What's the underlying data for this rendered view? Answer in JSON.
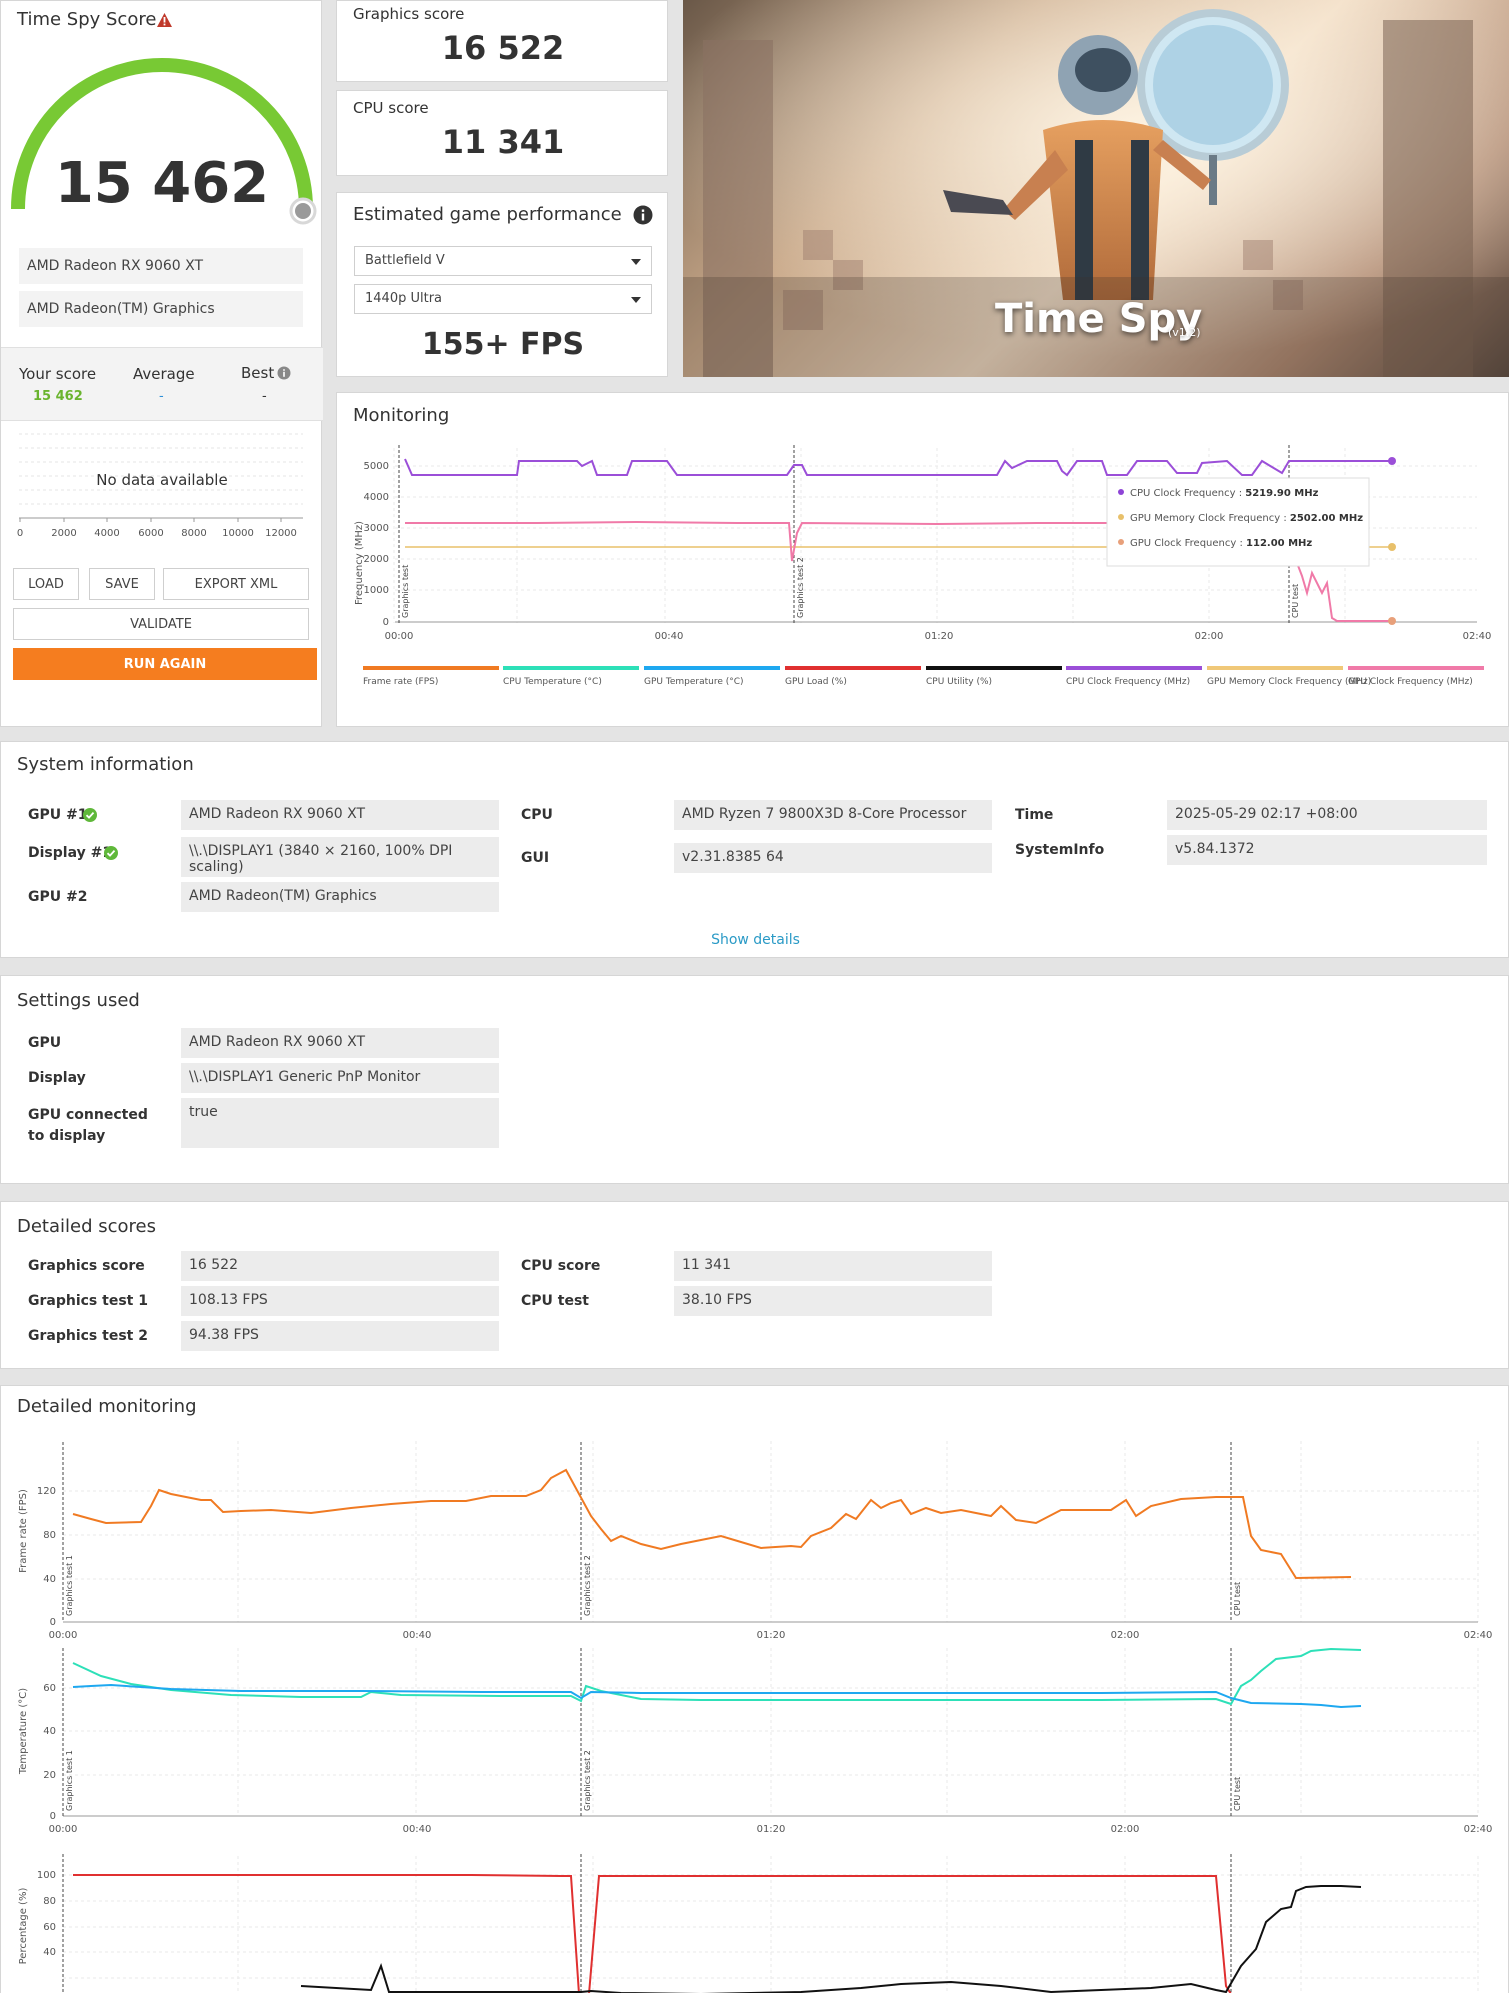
{
  "score_card": {
    "title": "Time Spy Score",
    "score": "15 462",
    "gpus": [
      "AMD Radeon RX 9060 XT",
      "AMD Radeon(TM) Graphics"
    ],
    "compare": {
      "your_label": "Your score",
      "your_value": "15 462",
      "avg_label": "Average",
      "avg_value": "-",
      "best_label": "Best",
      "best_value": "-"
    },
    "no_data": "No data available",
    "axis_ticks": [
      "0",
      "2000",
      "4000",
      "6000",
      "8000",
      "10000",
      "12000"
    ],
    "buttons": {
      "load": "LOAD",
      "save": "SAVE",
      "export": "EXPORT XML",
      "validate": "VALIDATE",
      "run_again": "RUN AGAIN"
    }
  },
  "graphics_score": {
    "label": "Graphics score",
    "value": "16 522"
  },
  "cpu_score": {
    "label": "CPU score",
    "value": "11 341"
  },
  "estimated": {
    "title": "Estimated game performance",
    "game": "Battlefield V",
    "preset": "1440p Ultra",
    "fps": "155+ FPS"
  },
  "hero": {
    "title": "Time Spy",
    "version": "(v1.2)"
  },
  "monitoring": {
    "title": "Monitoring",
    "ylabel": "Frequency (MHz)",
    "yticks": [
      "5000",
      "4000",
      "3000",
      "2000",
      "1000",
      "0"
    ],
    "xticks": [
      "00:00",
      "00:40",
      "01:20",
      "02:00",
      "02:40"
    ],
    "markers": [
      "Graphics test",
      "Graphics test 2",
      "CPU test"
    ],
    "tooltip": [
      {
        "label": "CPU Clock Frequency",
        "value": "5219.90 MHz",
        "color": "#8e44d6"
      },
      {
        "label": "GPU Memory Clock Frequency",
        "value": "2502.00 MHz",
        "color": "#e8c06a"
      },
      {
        "label": "GPU Clock Frequency",
        "value": "112.00 MHz",
        "color": "#e8a07a"
      }
    ],
    "legend": [
      {
        "label": "Frame rate (FPS)",
        "color": "#f07a22"
      },
      {
        "label": "CPU Temperature (°C)",
        "color": "#2de0b8"
      },
      {
        "label": "GPU Temperature (°C)",
        "color": "#1ea8f0"
      },
      {
        "label": "GPU Load (%)",
        "color": "#e03030"
      },
      {
        "label": "CPU Utility (%)",
        "color": "#111111"
      },
      {
        "label": "CPU Clock Frequency (MHz)",
        "color": "#9b4fd8"
      },
      {
        "label": "GPU Memory Clock Frequency (MHz)",
        "color": "#f0c878"
      },
      {
        "label": "GPU Clock Frequency (MHz)",
        "color": "#f07aa8"
      }
    ]
  },
  "system_info": {
    "title": "System information",
    "rows_left": [
      {
        "label": "GPU #1",
        "value": "AMD Radeon RX 9060 XT",
        "check": true
      },
      {
        "label": "Display #1",
        "value": "\\\\.\\DISPLAY1 (3840 × 2160, 100% DPI scaling)",
        "check": true
      },
      {
        "label": "GPU #2",
        "value": "AMD Radeon(TM) Graphics",
        "check": false
      }
    ],
    "rows_mid": [
      {
        "label": "CPU",
        "value": "AMD Ryzen 7 9800X3D 8-Core Processor"
      },
      {
        "label": "GUI",
        "value": "v2.31.8385 64"
      }
    ],
    "rows_right": [
      {
        "label": "Time",
        "value": "2025-05-29 02:17 +08:00"
      },
      {
        "label": "SystemInfo",
        "value": "v5.84.1372"
      }
    ],
    "show_details": "Show details"
  },
  "settings_used": {
    "title": "Settings used",
    "rows": [
      {
        "label": "GPU",
        "value": "AMD Radeon RX 9060 XT"
      },
      {
        "label": "Display",
        "value": "\\\\.\\DISPLAY1 Generic PnP Monitor"
      },
      {
        "label": "GPU connected to display",
        "value": "true"
      }
    ]
  },
  "detailed_scores": {
    "title": "Detailed scores",
    "left": [
      {
        "label": "Graphics score",
        "value": "16 522"
      },
      {
        "label": "Graphics test 1",
        "value": "108.13 FPS"
      },
      {
        "label": "Graphics test 2",
        "value": "94.38 FPS"
      }
    ],
    "right": [
      {
        "label": "CPU score",
        "value": "11 341"
      },
      {
        "label": "CPU test",
        "value": "38.10 FPS"
      }
    ]
  },
  "detailed_monitoring": {
    "title": "Detailed monitoring",
    "xticks": [
      "00:00",
      "00:40",
      "01:20",
      "02:00",
      "02:40"
    ],
    "markers": [
      "Graphics test 1",
      "Graphics test 2",
      "CPU test"
    ],
    "charts": [
      {
        "ylabel": "Frame rate (FPS)",
        "yticks": [
          "120",
          "80",
          "40",
          "0"
        ]
      },
      {
        "ylabel": "Temperature (°C)",
        "yticks": [
          "60",
          "40",
          "20",
          "0"
        ]
      },
      {
        "ylabel": "Percentage (%)",
        "yticks": [
          "100",
          "80",
          "60",
          "40"
        ]
      }
    ]
  }
}
